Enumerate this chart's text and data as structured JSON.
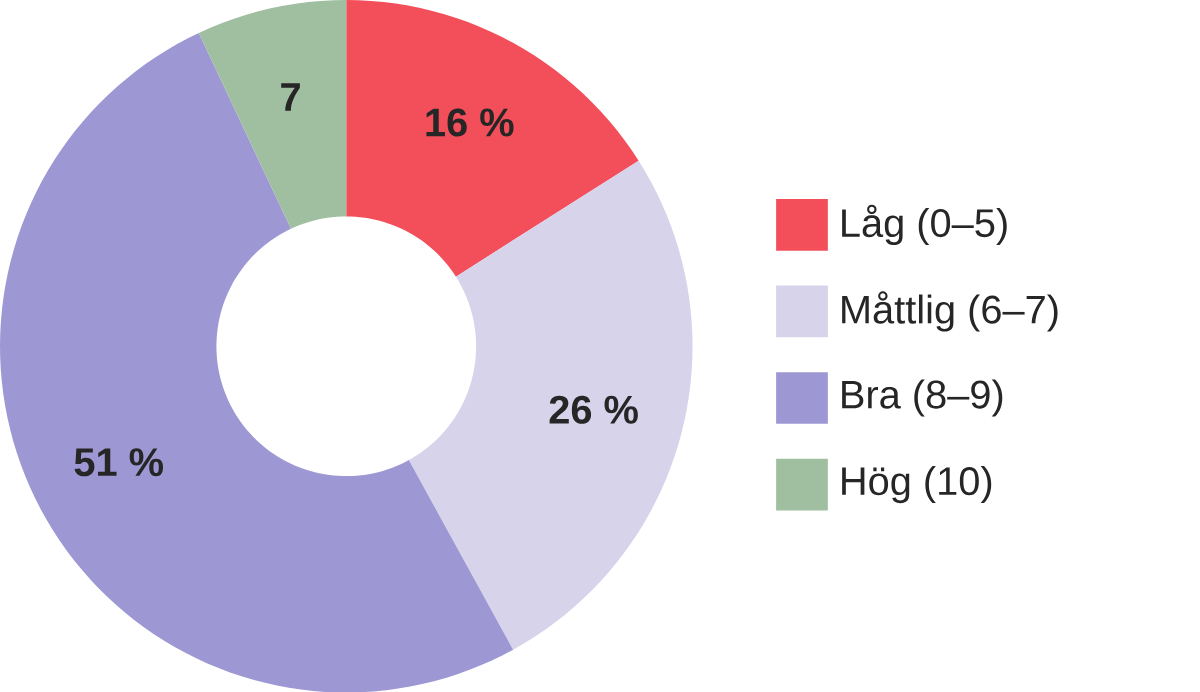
{
  "chart_data": {
    "type": "donut",
    "categories": [
      "Låg (0–5)",
      "Måttlig (6–7)",
      "Bra (8–9)",
      "Hög (10)"
    ],
    "values": [
      16,
      26,
      51,
      7
    ],
    "colors": [
      "#f24f5b",
      "#d6d3eb",
      "#9d98d3",
      "#a0bfa0"
    ],
    "value_labels": [
      "16 %",
      "26 %",
      "51 %",
      "7"
    ],
    "legend": "right"
  }
}
